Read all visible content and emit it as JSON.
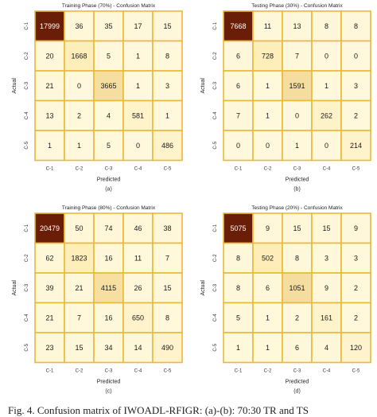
{
  "figure_caption": "Fig. 4.      Confusion matrix of IWOADL-RFIGR: (a)-(b): 70:30 TR and TS",
  "colors": {
    "low": "#fff8dc",
    "mid": "#fde9a9",
    "high": "#6b1e07",
    "border": "#e8ba3a"
  },
  "chart_data": [
    {
      "type": "heatmap",
      "title": "Training Phase (70%) - Confusion Matrix",
      "caption": "(a)",
      "xlabel": "Predicted",
      "ylabel": "Actual",
      "x_categories": [
        "C-1",
        "C-2",
        "C-3",
        "C-4",
        "C-5"
      ],
      "y_categories": [
        "C-1",
        "C-2",
        "C-3",
        "C-4",
        "C-5"
      ],
      "values": [
        [
          17999,
          36,
          35,
          17,
          15
        ],
        [
          20,
          1668,
          5,
          1,
          8
        ],
        [
          21,
          0,
          3665,
          1,
          3
        ],
        [
          13,
          2,
          4,
          581,
          1
        ],
        [
          1,
          1,
          5,
          0,
          486
        ]
      ]
    },
    {
      "type": "heatmap",
      "title": "Testing Phase (30%) - Confusion Matrix",
      "caption": "(b)",
      "xlabel": "Predicted",
      "ylabel": "Actual",
      "x_categories": [
        "C-1",
        "C-2",
        "C-3",
        "C-4",
        "C-5"
      ],
      "y_categories": [
        "C-1",
        "C-2",
        "C-3",
        "C-4",
        "C-5"
      ],
      "values": [
        [
          7668,
          11,
          13,
          8,
          8
        ],
        [
          6,
          728,
          7,
          0,
          0
        ],
        [
          6,
          1,
          1591,
          1,
          3
        ],
        [
          7,
          1,
          0,
          262,
          2
        ],
        [
          0,
          0,
          1,
          0,
          214
        ]
      ]
    },
    {
      "type": "heatmap",
      "title": "Training Phase (80%) - Confusion Matrix",
      "caption": "(c)",
      "xlabel": "Predicted",
      "ylabel": "Actual",
      "x_categories": [
        "C-1",
        "C-2",
        "C-3",
        "C-4",
        "C-5"
      ],
      "y_categories": [
        "C-1",
        "C-2",
        "C-3",
        "C-4",
        "C-5"
      ],
      "values": [
        [
          20479,
          50,
          74,
          46,
          38
        ],
        [
          62,
          1823,
          16,
          11,
          7
        ],
        [
          39,
          21,
          4115,
          26,
          15
        ],
        [
          21,
          7,
          16,
          650,
          8
        ],
        [
          23,
          15,
          34,
          14,
          490
        ]
      ]
    },
    {
      "type": "heatmap",
      "title": "Testing Phase (20%) - Confusion Matrix",
      "caption": "(d)",
      "xlabel": "Predicted",
      "ylabel": "Actual",
      "x_categories": [
        "C-1",
        "C-2",
        "C-3",
        "C-4",
        "C-5"
      ],
      "y_categories": [
        "C-1",
        "C-2",
        "C-3",
        "C-4",
        "C-5"
      ],
      "values": [
        [
          5075,
          9,
          15,
          15,
          9
        ],
        [
          8,
          502,
          8,
          3,
          3
        ],
        [
          8,
          6,
          1051,
          9,
          2
        ],
        [
          5,
          1,
          2,
          161,
          2
        ],
        [
          1,
          1,
          6,
          4,
          120
        ]
      ]
    }
  ]
}
